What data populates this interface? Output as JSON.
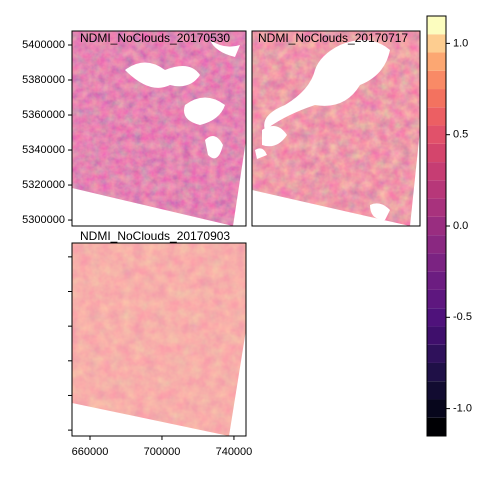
{
  "chart_data": {
    "type": "raster",
    "panels": [
      {
        "title": "NDMI_NoClouds_20170530"
      },
      {
        "title": "NDMI_NoClouds_20170717"
      },
      {
        "title": "NDMI_NoClouds_20170903"
      }
    ],
    "xlim": [
      650000,
      746700
    ],
    "xticks": [
      660000,
      700000,
      740000
    ],
    "ylim": [
      5296600,
      5408000
    ],
    "yticks": [
      5300000,
      5320000,
      5340000,
      5360000,
      5380000,
      5400000
    ],
    "colorbar_lim": [
      -1.15,
      1.15
    ],
    "colorbar_ticks": [
      {
        "value": -1,
        "label": "-1.0"
      },
      {
        "value": -0.5,
        "label": "-0.5"
      },
      {
        "value": 0,
        "label": "0.0"
      },
      {
        "value": 0.5,
        "label": "0.5"
      },
      {
        "value": 1,
        "label": "1.0"
      }
    ],
    "colors": [
      "#000004",
      "#07061c",
      "#120c31",
      "#1f1047",
      "#2f115b",
      "#3f0f6c",
      "#4f127b",
      "#5e177f",
      "#6c1d81",
      "#7b2382",
      "#8a2881",
      "#992d80",
      "#a8327d",
      "#b73779",
      "#c63d73",
      "#d4456c",
      "#e1516a",
      "#ec5f63",
      "#f3725f",
      "#f98a66",
      "#fca772",
      "#fdcd90",
      "#fcfdbf"
    ]
  }
}
